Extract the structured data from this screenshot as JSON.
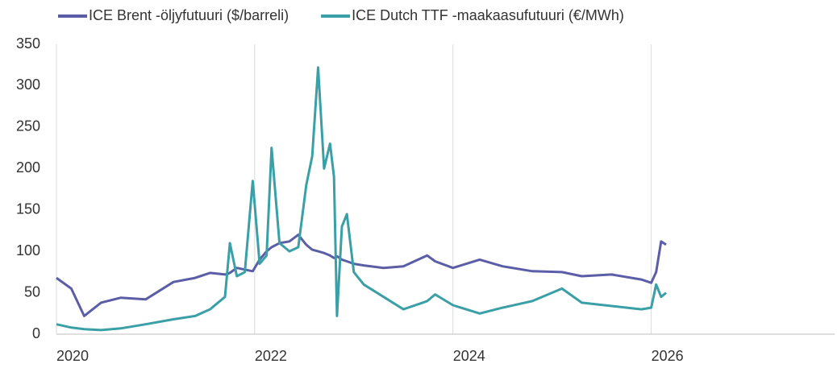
{
  "chart_data": {
    "type": "line",
    "x": [
      2020.0,
      2020.15,
      2020.28,
      2020.45,
      2020.65,
      2020.9,
      2021.18,
      2021.4,
      2021.55,
      2021.7,
      2021.75,
      2021.82,
      2021.9,
      2021.98,
      2022.05,
      2022.12,
      2022.17,
      2022.25,
      2022.35,
      2022.44,
      2022.52,
      2022.58,
      2022.64,
      2022.7,
      2022.76,
      2022.8,
      2022.83,
      2022.88,
      2022.93,
      2023.0,
      2023.1,
      2023.3,
      2023.5,
      2023.74,
      2023.82,
      2024.0,
      2024.27,
      2024.5,
      2024.8,
      2025.1,
      2025.3,
      2025.6,
      2025.9,
      2026.0,
      2026.05,
      2026.1,
      2026.15
    ],
    "series": [
      {
        "name": "ICE Brent -öljyfutuuri ($/barreli)",
        "color": "#5b5ea6",
        "values": [
          68,
          55,
          22,
          38,
          44,
          42,
          63,
          68,
          74,
          72,
          74,
          80,
          78,
          76,
          90,
          100,
          105,
          110,
          112,
          120,
          108,
          102,
          100,
          98,
          95,
          92,
          94,
          90,
          88,
          85,
          83,
          80,
          82,
          95,
          88,
          80,
          90,
          82,
          76,
          75,
          70,
          72,
          66,
          62,
          75,
          112,
          108
        ]
      },
      {
        "name": "ICE Dutch TTF -maakaasufutuuri (€/MWh)",
        "color": "#3a9fa6",
        "values": [
          12,
          8,
          6,
          5,
          7,
          12,
          18,
          22,
          30,
          45,
          110,
          70,
          75,
          185,
          85,
          95,
          225,
          110,
          100,
          105,
          180,
          215,
          322,
          200,
          230,
          190,
          22,
          130,
          145,
          75,
          60,
          45,
          30,
          40,
          48,
          35,
          25,
          32,
          40,
          55,
          38,
          34,
          30,
          32,
          60,
          45,
          50
        ]
      }
    ],
    "xlim": [
      2020,
      2027.85
    ],
    "xticks": [
      2020,
      2022,
      2024,
      2026
    ],
    "ylim": [
      0,
      350
    ],
    "yticks": [
      0,
      50,
      100,
      150,
      200,
      250,
      300,
      350
    ],
    "grid": "vertical",
    "legend": "top"
  }
}
